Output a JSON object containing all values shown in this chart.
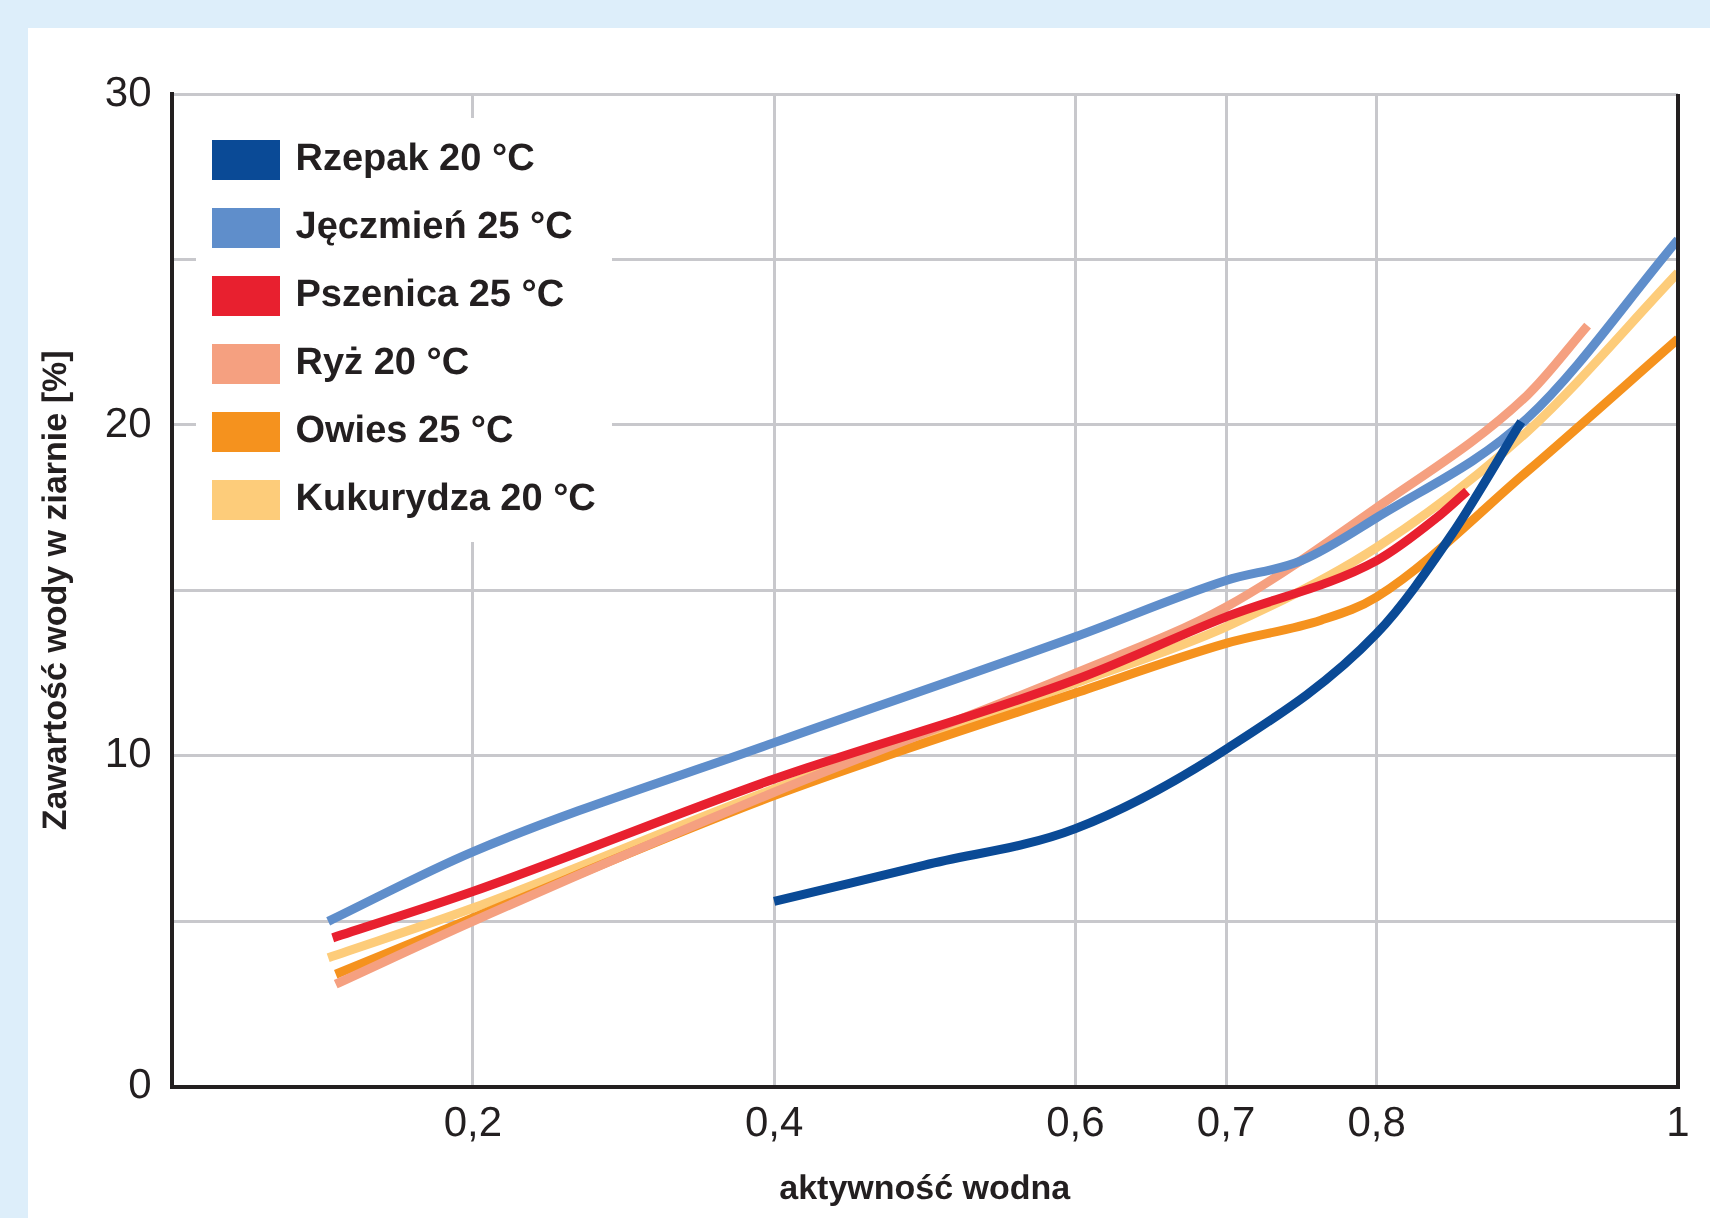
{
  "chart_data": {
    "type": "line",
    "xlabel": "aktywność wodna",
    "ylabel": "Zawartość wody w ziarnie [%]",
    "xlim": [
      0,
      1
    ],
    "xticks": [
      {
        "value": 0.2,
        "label": "0,2"
      },
      {
        "value": 0.4,
        "label": "0,4"
      },
      {
        "value": 0.6,
        "label": "0,6"
      },
      {
        "value": 0.7,
        "label": "0,7"
      },
      {
        "value": 0.8,
        "label": "0,8"
      },
      1
    ],
    "ylim": [
      0,
      30
    ],
    "yticks": [
      0,
      {
        "value": 5,
        "label": null
      },
      10,
      {
        "value": 15,
        "label": null
      },
      20,
      {
        "value": 25,
        "label": null
      },
      30
    ],
    "grid": true,
    "legend": "top left",
    "marker": "none",
    "line_style": "solid",
    "series": [
      {
        "name": "Rzepak 20 °C",
        "color": "#0a4a96",
        "x": [
          0.4,
          0.5,
          0.6,
          0.7,
          0.8,
          0.85,
          0.896
        ],
        "values": [
          5.6,
          6.7,
          7.8,
          10.2,
          13.7,
          16.7,
          20.1
        ]
      },
      {
        "name": "Jęczmień 25 °C",
        "color": "#5f8ecb",
        "x": [
          0.104,
          0.2,
          0.4,
          0.6,
          0.7,
          0.75,
          0.8,
          0.9,
          1.0
        ],
        "values": [
          5.0,
          7.1,
          10.4,
          13.6,
          15.3,
          15.9,
          17.2,
          20.2,
          25.6
        ]
      },
      {
        "name": "Pszenica 25 °C",
        "color": "#e8202f",
        "x": [
          0.107,
          0.2,
          0.4,
          0.6,
          0.7,
          0.8,
          0.84,
          0.86
        ],
        "values": [
          4.5,
          5.9,
          9.3,
          12.3,
          14.2,
          15.9,
          17.2,
          18.0
        ]
      },
      {
        "name": "Ryż 20 °C",
        "color": "#f5a080",
        "x": [
          0.109,
          0.2,
          0.4,
          0.6,
          0.7,
          0.8,
          0.9,
          0.94
        ],
        "values": [
          3.1,
          5.0,
          8.9,
          12.5,
          14.5,
          17.5,
          20.9,
          23.0
        ]
      },
      {
        "name": "Owies 25 °C",
        "color": "#f5921e",
        "x": [
          0.109,
          0.2,
          0.4,
          0.6,
          0.7,
          0.763,
          0.8,
          0.9,
          1.0
        ],
        "values": [
          3.4,
          5.1,
          8.8,
          11.9,
          13.4,
          14.1,
          14.8,
          18.6,
          22.6
        ]
      },
      {
        "name": "Kukurydza 20 °C",
        "color": "#fdcc7a",
        "x": [
          0.104,
          0.2,
          0.4,
          0.6,
          0.7,
          0.8,
          0.9,
          1.0
        ],
        "values": [
          3.9,
          5.4,
          9.0,
          12.2,
          13.9,
          16.3,
          19.8,
          24.6
        ]
      }
    ]
  }
}
